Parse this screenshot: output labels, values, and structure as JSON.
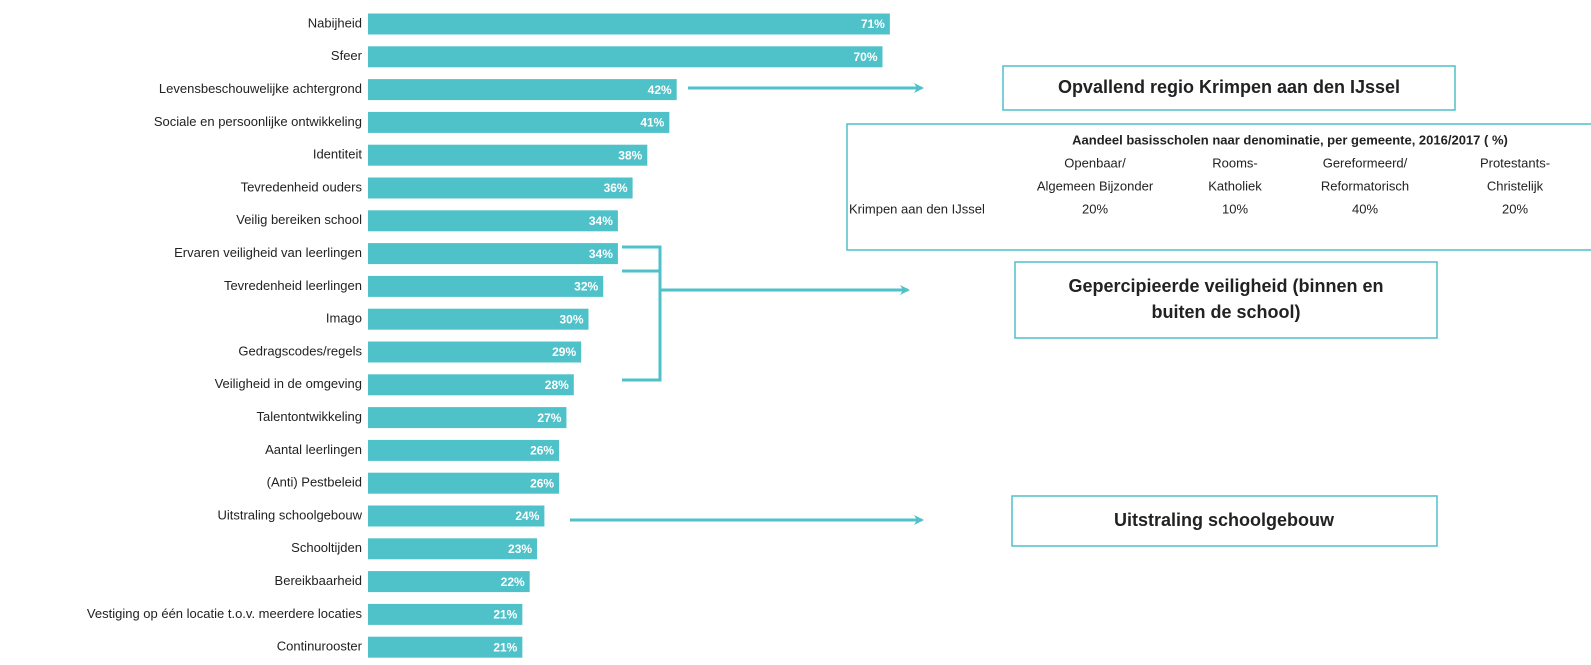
{
  "chart_data": {
    "type": "bar",
    "orientation": "horizontal",
    "color": "#4fc1c9",
    "categories": [
      "Nabijheid",
      "Sfeer",
      "Levensbeschouwelijke achtergrond",
      "Sociale en persoonlijke ontwikkeling",
      "Identiteit",
      "Tevredenheid ouders",
      "Veilig bereiken school",
      "Ervaren veiligheid van leerlingen",
      "Tevredenheid leerlingen",
      "Imago",
      "Gedragscodes/regels",
      "Veiligheid in de omgeving",
      "Talentontwikkeling",
      "Aantal leerlingen",
      "(Anti) Pestbeleid",
      "Uitstraling schoolgebouw",
      "Schooltijden",
      "Bereikbaarheid",
      "Vestiging op één locatie t.o.v. meerdere locaties",
      "Continurooster"
    ],
    "values": [
      71,
      70,
      42,
      41,
      38,
      36,
      34,
      34,
      32,
      30,
      29,
      28,
      27,
      26,
      26,
      24,
      23,
      22,
      21,
      21
    ],
    "value_labels": [
      "71%",
      "70%",
      "42%",
      "41%",
      "38%",
      "36%",
      "34%",
      "34%",
      "32%",
      "30%",
      "29%",
      "28%",
      "27%",
      "26%",
      "26%",
      "24%",
      "23%",
      "22%",
      "21%",
      "21%"
    ]
  },
  "callouts": [
    {
      "lines": [
        "Opvallend regio Krimpen aan den IJssel"
      ]
    },
    {
      "lines": [
        "Gepercipieerde veiligheid (binnen en",
        "buiten de school)"
      ]
    },
    {
      "lines": [
        "Uitstraling schoolgebouw"
      ]
    }
  ],
  "table": {
    "title": "Aandeel basisscholen naar denominatie, per gemeente, 2016/2017 ( %)",
    "headers": [
      [
        "Openbaar/",
        "Algemeen Bijzonder"
      ],
      [
        "Rooms-",
        "Katholiek"
      ],
      [
        "Gereformeerd/",
        "Reformatorisch"
      ],
      [
        "Protestants-",
        "Christelijk"
      ]
    ],
    "rows": [
      [
        "Krimpen aan den IJssel",
        "20%",
        "10%",
        "40%",
        "20%"
      ]
    ]
  }
}
